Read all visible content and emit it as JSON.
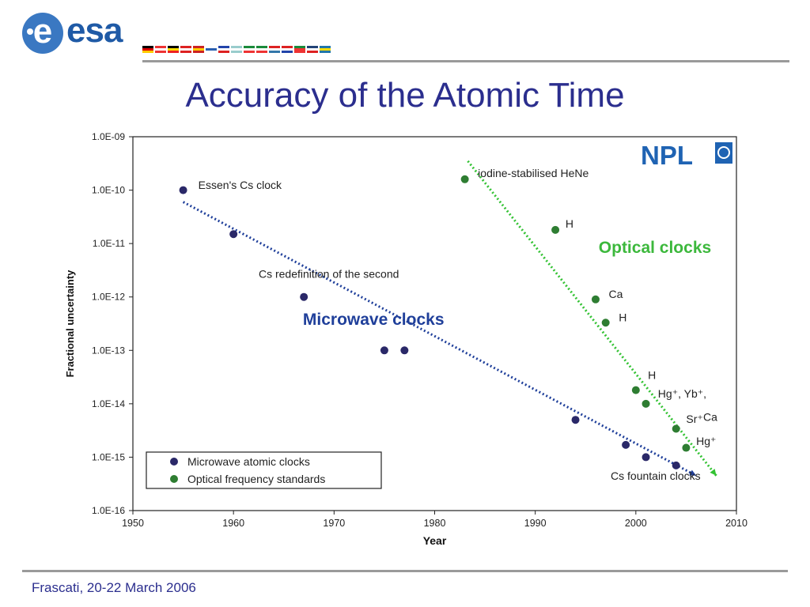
{
  "header": {
    "logo_text": "esa",
    "logo_letter": "e",
    "flag_count": 15
  },
  "slide": {
    "title": "Accuracy of the Atomic Time",
    "footer": "Frascati, 20-22 March 2006"
  },
  "colors": {
    "title": "#2b2e8e",
    "microwave": "#2a2868",
    "optical": "#2e7d32",
    "optical_line": "#33c233",
    "microwave_line": "#1f3f9a",
    "npl": "#1f63b3"
  },
  "chart_data": {
    "type": "scatter",
    "title": "",
    "xlabel": "Year",
    "ylabel": "Fractional uncertainty",
    "xlim": [
      1950,
      2010
    ],
    "ylim_log10": [
      -16,
      -9
    ],
    "x_ticks": [
      "1950",
      "1960",
      "1970",
      "1980",
      "1990",
      "2000",
      "2010"
    ],
    "y_ticks": [
      "1.0E-09",
      "1.0E-10",
      "1.0E-11",
      "1.0E-12",
      "1.0E-13",
      "1.0E-14",
      "1.0E-15",
      "1.0E-16"
    ],
    "logo": "NPL",
    "series": [
      {
        "name": "Microwave atomic clocks",
        "color": "#2a2868",
        "points": [
          {
            "x": 1955,
            "y": 1e-10
          },
          {
            "x": 1960,
            "y": 1.5e-11
          },
          {
            "x": 1967,
            "y": 1e-12
          },
          {
            "x": 1975,
            "y": 1e-13
          },
          {
            "x": 1977,
            "y": 1e-13
          },
          {
            "x": 1994,
            "y": 5e-15
          },
          {
            "x": 1999,
            "y": 1.7e-15
          },
          {
            "x": 2001,
            "y": 1e-15
          },
          {
            "x": 2004,
            "y": 7e-16
          }
        ]
      },
      {
        "name": "Optical frequency standards",
        "color": "#2e7d32",
        "points": [
          {
            "x": 1983,
            "y": 1.6e-10
          },
          {
            "x": 1992,
            "y": 1.8e-11
          },
          {
            "x": 1996,
            "y": 9e-13
          },
          {
            "x": 1997,
            "y": 3.3e-13
          },
          {
            "x": 2000,
            "y": 1.8e-14
          },
          {
            "x": 2001,
            "y": 1e-14
          },
          {
            "x": 2004,
            "y": 3.4e-15
          },
          {
            "x": 2005,
            "y": 1.5e-15
          }
        ]
      }
    ],
    "trend_lines": [
      {
        "name": "Microwave clocks",
        "x": [
          1955,
          2006
        ],
        "y": [
          6e-11,
          4.5e-16
        ],
        "color": "#1f3f9a"
      },
      {
        "name": "Optical clocks",
        "x": [
          1983.3,
          2008
        ],
        "y": [
          3.5e-10,
          4.5e-16
        ],
        "color": "#33c233"
      }
    ],
    "annotations": [
      {
        "text": "Essen's Cs clock",
        "x": 1956.5,
        "y": 1.05e-10
      },
      {
        "text": "Cs redefinition of the second",
        "x": 1962.5,
        "y": 2.3e-12
      },
      {
        "text": "iodine-stabilised HeNe",
        "x": 1984.3,
        "y": 1.75e-10
      },
      {
        "text": "H",
        "x": 1993.0,
        "y": 2e-11
      },
      {
        "text": "Ca",
        "x": 1997.3,
        "y": 9.5e-13
      },
      {
        "text": "H",
        "x": 1998.3,
        "y": 3.5e-13
      },
      {
        "text": "H",
        "x": 2001.2,
        "y": 2.9e-14
      },
      {
        "text": "Hg⁺, Yb⁺,",
        "x": 2002.2,
        "y": 1.3e-14
      },
      {
        "text": "Sr⁺",
        "x": 2005.0,
        "y": 4.4e-15
      },
      {
        "text": "Ca",
        "x": 2006.7,
        "y": 4.8e-15
      },
      {
        "text": "Hg⁺",
        "x": 2006.0,
        "y": 1.7e-15
      },
      {
        "text": "Cs fountain clocks",
        "x": 1997.5,
        "y": 3.8e-16
      }
    ],
    "callouts": [
      {
        "text": "Microwave clocks",
        "x": 1966.9,
        "y": 3e-13,
        "color": "#1f3f9a"
      },
      {
        "text": "Optical clocks",
        "x": 1996.3,
        "y": 6.7e-12,
        "color": "#3cb83c"
      }
    ]
  }
}
